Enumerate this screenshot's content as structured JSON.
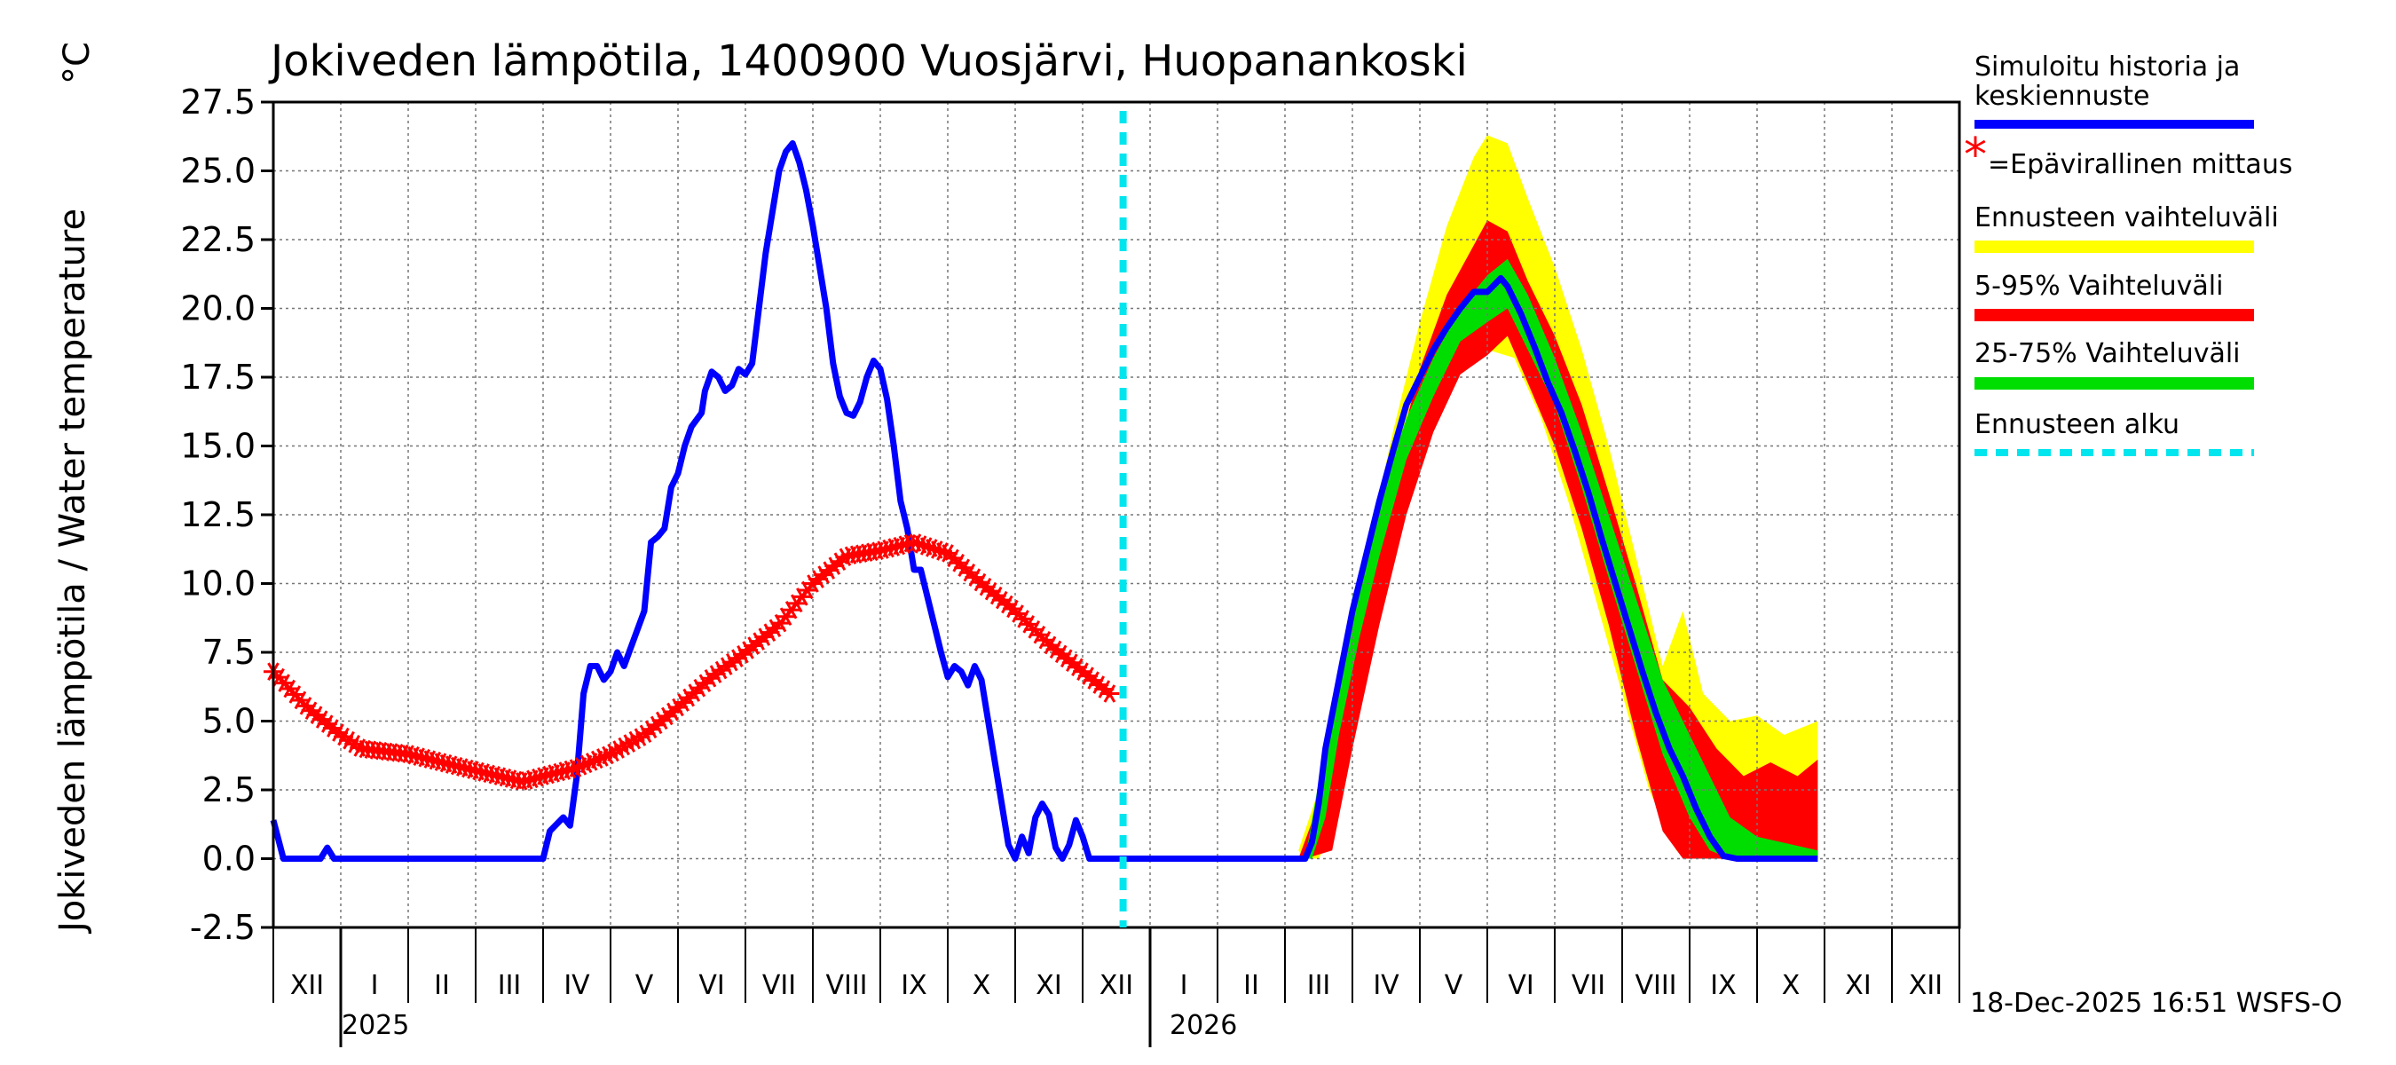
{
  "chart_data": {
    "type": "line",
    "title": "Jokiveden lämpötila, 1400900 Vuosjärvi, Huopanankoski",
    "ylabel": "Jokiveden lämpötila / Water temperature",
    "yunit": "°C",
    "ylim": [
      -2.5,
      27.5
    ],
    "yticks": [
      "27.5",
      "25.0",
      "22.5",
      "20.0",
      "17.5",
      "15.0",
      "12.5",
      "10.0",
      "7.5",
      "5.0",
      "2.5",
      "0.0",
      "-2.5"
    ],
    "grid": true,
    "months": [
      "XII",
      "I",
      "II",
      "III",
      "IV",
      "V",
      "VI",
      "VII",
      "VIII",
      "IX",
      "X",
      "XI",
      "XII",
      "I",
      "II",
      "III",
      "IV",
      "V",
      "VI",
      "VII",
      "VIII",
      "IX",
      "X",
      "XI",
      "XII"
    ],
    "years": [
      "2025",
      "2026"
    ],
    "forecast_start_month": 12.6,
    "series": [
      {
        "name": "Simuloitu historia ja keskiennuste",
        "color": "#0000ff",
        "points": [
          [
            0,
            1.4
          ],
          [
            0.15,
            0
          ],
          [
            0.7,
            0
          ],
          [
            0.8,
            0.4
          ],
          [
            0.9,
            0
          ],
          [
            4,
            0
          ],
          [
            4.1,
            1
          ],
          [
            4.3,
            1.5
          ],
          [
            4.4,
            1.2
          ],
          [
            4.5,
            3
          ],
          [
            4.6,
            6
          ],
          [
            4.7,
            7
          ],
          [
            4.8,
            7
          ],
          [
            4.9,
            6.5
          ],
          [
            5,
            6.8
          ],
          [
            5.1,
            7.5
          ],
          [
            5.2,
            7
          ],
          [
            5.35,
            8
          ],
          [
            5.5,
            9
          ],
          [
            5.6,
            11.5
          ],
          [
            5.7,
            11.7
          ],
          [
            5.8,
            12
          ],
          [
            5.9,
            13.5
          ],
          [
            6,
            14
          ],
          [
            6.1,
            15
          ],
          [
            6.2,
            15.7
          ],
          [
            6.35,
            16.2
          ],
          [
            6.4,
            17
          ],
          [
            6.5,
            17.7
          ],
          [
            6.6,
            17.5
          ],
          [
            6.7,
            17
          ],
          [
            6.8,
            17.2
          ],
          [
            6.9,
            17.8
          ],
          [
            7,
            17.6
          ],
          [
            7.1,
            18
          ],
          [
            7.2,
            20
          ],
          [
            7.3,
            22
          ],
          [
            7.4,
            23.5
          ],
          [
            7.5,
            25
          ],
          [
            7.6,
            25.7
          ],
          [
            7.7,
            26
          ],
          [
            7.8,
            25.3
          ],
          [
            7.9,
            24.3
          ],
          [
            8,
            23
          ],
          [
            8.1,
            21.5
          ],
          [
            8.2,
            20
          ],
          [
            8.3,
            18
          ],
          [
            8.4,
            16.8
          ],
          [
            8.5,
            16.2
          ],
          [
            8.6,
            16.1
          ],
          [
            8.7,
            16.6
          ],
          [
            8.8,
            17.5
          ],
          [
            8.9,
            18.1
          ],
          [
            9,
            17.8
          ],
          [
            9.1,
            16.7
          ],
          [
            9.2,
            15
          ],
          [
            9.3,
            13
          ],
          [
            9.4,
            12
          ],
          [
            9.5,
            10.5
          ],
          [
            9.6,
            10.5
          ],
          [
            9.7,
            9.5
          ],
          [
            9.8,
            8.5
          ],
          [
            9.9,
            7.5
          ],
          [
            10,
            6.6
          ],
          [
            10.1,
            7
          ],
          [
            10.2,
            6.8
          ],
          [
            10.3,
            6.3
          ],
          [
            10.4,
            7
          ],
          [
            10.5,
            6.5
          ],
          [
            10.6,
            5
          ],
          [
            10.7,
            3.5
          ],
          [
            10.8,
            2
          ],
          [
            10.9,
            0.5
          ],
          [
            11,
            0
          ],
          [
            11.1,
            0.8
          ],
          [
            11.2,
            0.2
          ],
          [
            11.3,
            1.5
          ],
          [
            11.4,
            2
          ],
          [
            11.5,
            1.6
          ],
          [
            11.6,
            0.4
          ],
          [
            11.7,
            0
          ],
          [
            11.8,
            0.5
          ],
          [
            11.9,
            1.4
          ],
          [
            12,
            0.8
          ],
          [
            12.1,
            0
          ],
          [
            15.3,
            0
          ],
          [
            15.4,
            0.6
          ],
          [
            15.5,
            2
          ],
          [
            15.6,
            4
          ],
          [
            15.8,
            6.5
          ],
          [
            16,
            9
          ],
          [
            16.2,
            11
          ],
          [
            16.4,
            13
          ],
          [
            16.6,
            14.8
          ],
          [
            16.8,
            16.5
          ],
          [
            17,
            17.5
          ],
          [
            17.2,
            18.5
          ],
          [
            17.4,
            19.3
          ],
          [
            17.6,
            20
          ],
          [
            17.8,
            20.6
          ],
          [
            18,
            20.6
          ],
          [
            18.2,
            21.1
          ],
          [
            18.3,
            20.8
          ],
          [
            18.5,
            19.8
          ],
          [
            18.7,
            18.6
          ],
          [
            18.9,
            17.3
          ],
          [
            19.1,
            16.2
          ],
          [
            19.3,
            14.8
          ],
          [
            19.5,
            13.3
          ],
          [
            19.7,
            11.6
          ],
          [
            19.9,
            10
          ],
          [
            20.1,
            8.4
          ],
          [
            20.3,
            6.8
          ],
          [
            20.5,
            5.3
          ],
          [
            20.7,
            4
          ],
          [
            20.9,
            3
          ],
          [
            21.1,
            1.8
          ],
          [
            21.3,
            0.8
          ],
          [
            21.5,
            0.1
          ],
          [
            21.7,
            0
          ],
          [
            22.9,
            0
          ]
        ]
      },
      {
        "name": "=Epävirallinen mittaus",
        "color": "#ff0000",
        "marker": "asterisk",
        "points": [
          [
            0,
            6.8
          ],
          [
            0.5,
            5.5
          ],
          [
            1,
            4.5
          ],
          [
            1.3,
            4
          ],
          [
            2,
            3.8
          ],
          [
            3,
            3.2
          ],
          [
            3.7,
            2.8
          ],
          [
            4,
            3
          ],
          [
            4.5,
            3.3
          ],
          [
            5,
            3.8
          ],
          [
            5.5,
            4.5
          ],
          [
            6,
            5.5
          ],
          [
            6.5,
            6.6
          ],
          [
            7,
            7.5
          ],
          [
            7.5,
            8.5
          ],
          [
            8,
            10
          ],
          [
            8.5,
            11
          ],
          [
            9,
            11.2
          ],
          [
            9.5,
            11.5
          ],
          [
            10,
            11.1
          ],
          [
            10.5,
            10
          ],
          [
            11,
            9
          ],
          [
            11.5,
            7.8
          ],
          [
            12,
            6.8
          ],
          [
            12.4,
            6
          ]
        ]
      }
    ],
    "bands": [
      {
        "name": "Ennusteen vaihteluväli",
        "color": "#ffff00",
        "lower": [
          [
            15.3,
            0
          ],
          [
            15.5,
            0
          ],
          [
            15.7,
            1
          ],
          [
            16,
            5
          ],
          [
            16.4,
            9
          ],
          [
            16.8,
            13
          ],
          [
            17.2,
            16
          ],
          [
            17.6,
            18
          ],
          [
            18,
            18.5
          ],
          [
            18.4,
            18.2
          ],
          [
            18.8,
            16
          ],
          [
            19.2,
            13
          ],
          [
            19.6,
            9.5
          ],
          [
            20,
            6
          ],
          [
            20.4,
            2.5
          ],
          [
            20.8,
            0.3
          ],
          [
            21.2,
            0
          ],
          [
            22.9,
            0
          ]
        ],
        "upper": [
          [
            15.2,
            0.3
          ],
          [
            15.5,
            2.5
          ],
          [
            15.8,
            6
          ],
          [
            16.2,
            11
          ],
          [
            16.6,
            15.5
          ],
          [
            17,
            19.5
          ],
          [
            17.4,
            23
          ],
          [
            17.8,
            25.5
          ],
          [
            18,
            26.3
          ],
          [
            18.3,
            26
          ],
          [
            18.6,
            24
          ],
          [
            19,
            21.5
          ],
          [
            19.4,
            18.5
          ],
          [
            19.8,
            15
          ],
          [
            20.2,
            11
          ],
          [
            20.6,
            7
          ],
          [
            20.9,
            9
          ],
          [
            21.2,
            6
          ],
          [
            21.6,
            5
          ],
          [
            22,
            5.2
          ],
          [
            22.4,
            4.5
          ],
          [
            22.9,
            5
          ]
        ]
      },
      {
        "name": "5-95% Vaihteluväli",
        "color": "#ff0000",
        "lower": [
          [
            15.3,
            0
          ],
          [
            15.7,
            0.3
          ],
          [
            16,
            4
          ],
          [
            16.4,
            8.5
          ],
          [
            16.8,
            12.5
          ],
          [
            17.2,
            15.5
          ],
          [
            17.6,
            17.6
          ],
          [
            18,
            18.3
          ],
          [
            18.3,
            19
          ],
          [
            18.6,
            17.3
          ],
          [
            19,
            15
          ],
          [
            19.4,
            12
          ],
          [
            19.8,
            8.5
          ],
          [
            20.2,
            4.5
          ],
          [
            20.6,
            1
          ],
          [
            20.9,
            0
          ],
          [
            22.9,
            0
          ]
        ],
        "upper": [
          [
            15.2,
            0
          ],
          [
            15.5,
            2
          ],
          [
            15.8,
            5.5
          ],
          [
            16.2,
            10
          ],
          [
            16.6,
            14
          ],
          [
            17,
            17.8
          ],
          [
            17.4,
            20.5
          ],
          [
            17.8,
            22.3
          ],
          [
            18,
            23.2
          ],
          [
            18.3,
            22.8
          ],
          [
            18.6,
            21
          ],
          [
            19,
            19
          ],
          [
            19.4,
            16.5
          ],
          [
            19.8,
            13.3
          ],
          [
            20.2,
            10
          ],
          [
            20.6,
            6.5
          ],
          [
            21,
            5.5
          ],
          [
            21.4,
            4
          ],
          [
            21.8,
            3
          ],
          [
            22.2,
            3.5
          ],
          [
            22.6,
            3
          ],
          [
            22.9,
            3.6
          ]
        ]
      },
      {
        "name": "25-75% Vaihteluväli",
        "color": "#00dd00",
        "lower": [
          [
            15.4,
            0
          ],
          [
            15.6,
            1.5
          ],
          [
            15.8,
            4.5
          ],
          [
            16.1,
            8
          ],
          [
            16.4,
            11
          ],
          [
            16.8,
            14.5
          ],
          [
            17.2,
            16.8
          ],
          [
            17.6,
            18.8
          ],
          [
            18,
            19.5
          ],
          [
            18.3,
            20
          ],
          [
            18.6,
            18.5
          ],
          [
            19,
            16.5
          ],
          [
            19.4,
            13.5
          ],
          [
            19.8,
            10.2
          ],
          [
            20.2,
            7
          ],
          [
            20.6,
            3.8
          ],
          [
            21,
            1.5
          ],
          [
            21.3,
            0.3
          ],
          [
            21.6,
            0
          ],
          [
            22.9,
            0
          ]
        ],
        "upper": [
          [
            15.3,
            0
          ],
          [
            15.5,
            2.8
          ],
          [
            15.7,
            5.5
          ],
          [
            16,
            9.5
          ],
          [
            16.4,
            13
          ],
          [
            16.8,
            16
          ],
          [
            17.2,
            18.2
          ],
          [
            17.6,
            20
          ],
          [
            18,
            21.2
          ],
          [
            18.3,
            21.8
          ],
          [
            18.6,
            20.5
          ],
          [
            19,
            18.2
          ],
          [
            19.4,
            15.5
          ],
          [
            19.8,
            12.5
          ],
          [
            20.2,
            9.5
          ],
          [
            20.6,
            6.5
          ],
          [
            21,
            4.5
          ],
          [
            21.3,
            3
          ],
          [
            21.6,
            1.5
          ],
          [
            22,
            0.8
          ],
          [
            22.9,
            0.3
          ]
        ]
      }
    ],
    "legend": [
      {
        "label": "Simuloitu historia ja",
        "label2": "keskiennuste",
        "color": "#0000ff",
        "style": "solid"
      },
      {
        "label": "=Epävirallinen mittaus",
        "color": "#ff0000",
        "style": "asterisk"
      },
      {
        "label": "Ennusteen vaihteluväli",
        "color": "#ffff00",
        "style": "solid"
      },
      {
        "label": "5-95% Vaihteluväli",
        "color": "#ff0000",
        "style": "solid"
      },
      {
        "label": "25-75% Vaihteluväli",
        "color": "#00dd00",
        "style": "solid"
      },
      {
        "label": "Ennusteen alku",
        "color": "#00e5ee",
        "style": "dashed"
      }
    ],
    "timestamp": "18-Dec-2025 16:51 WSFS-O"
  }
}
